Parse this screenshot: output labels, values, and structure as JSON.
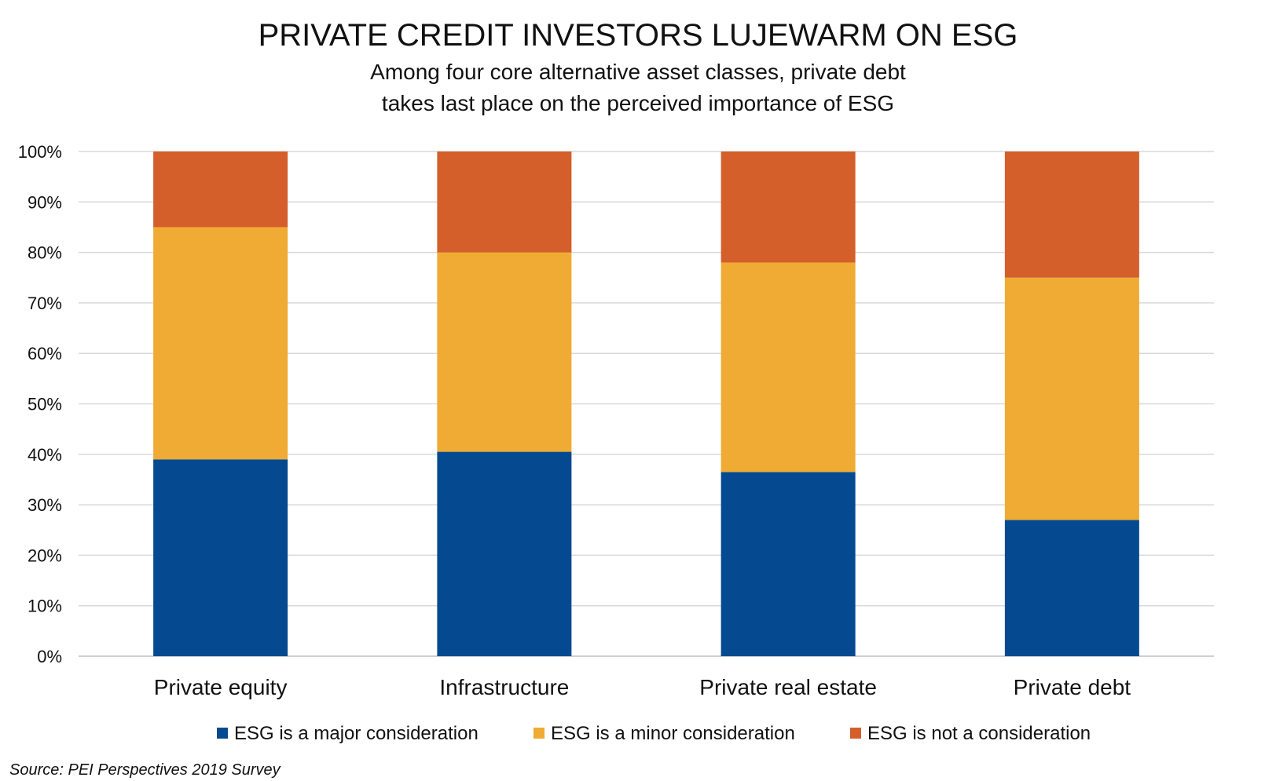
{
  "chart_data": {
    "type": "bar",
    "stacked": true,
    "title": "PRIVATE CREDIT INVESTORS LUJEWARM ON ESG",
    "subtitle": [
      "Among four core alternative asset classes, private debt",
      "takes last place on the perceived importance of ESG"
    ],
    "categories": [
      "Private equity",
      "Infrastructure",
      "Private real estate",
      "Private debt"
    ],
    "ylim": [
      0,
      100
    ],
    "yticks": [
      "0%",
      "10%",
      "20%",
      "30%",
      "40%",
      "50%",
      "60%",
      "70%",
      "80%",
      "90%",
      "100%"
    ],
    "grid": true,
    "legend_position": "bottom",
    "series": [
      {
        "name": "ESG is a major consideration",
        "color": "#054A91",
        "values": [
          39,
          40.5,
          36.5,
          27
        ]
      },
      {
        "name": "ESG is a minor consideration",
        "color": "#EFAB33",
        "values": [
          46,
          39.5,
          41.5,
          48
        ]
      },
      {
        "name": "ESG is not a consideration",
        "color": "#D45F2A",
        "values": [
          15,
          20,
          22,
          25
        ]
      }
    ],
    "source": "Source: PEI Perspectives 2019 Survey"
  }
}
